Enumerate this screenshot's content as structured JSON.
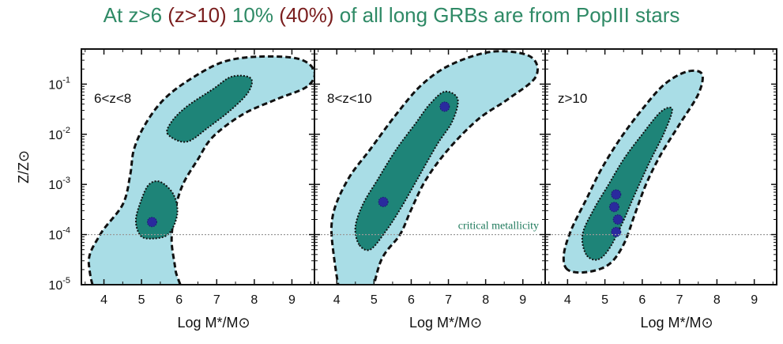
{
  "title_parts": [
    {
      "text": "At z>6 ",
      "color": "green"
    },
    {
      "text": "(z>10)",
      "color": "red"
    },
    {
      "text": " 10% ",
      "color": "green"
    },
    {
      "text": "(40%)",
      "color": "red"
    },
    {
      "text": " of all long GRBs are from PopIII stars",
      "color": "green"
    }
  ],
  "colors": {
    "title_green": "#2f8a66",
    "title_red": "#7a1e1e",
    "outer_contour": "#a9dde6",
    "inner_contour": "#1e8478",
    "peak": "#2a2a9e",
    "critical_line": "#9a9a9a",
    "annotation": "#1f7a5c"
  },
  "chart_data": [
    {
      "type": "contour",
      "panel_label": "6<z<8",
      "ylabel": "Z/Z⊙",
      "xlabel": "Log M*/M⊙",
      "xlim": [
        3.4,
        9.6
      ],
      "ylim_log10": [
        -5,
        -0.3
      ],
      "x_ticks": [
        4,
        5,
        6,
        7,
        8,
        9
      ],
      "y_ticks": [
        "10-5",
        "10-4",
        "10-3",
        "10-2",
        "10-1"
      ],
      "critical_metallicity": 0.0001,
      "outer_contour": [
        [
          4.1,
          -5
        ],
        [
          3.6,
          -4.6
        ],
        [
          3.9,
          -4.0
        ],
        [
          4.5,
          -3.4
        ],
        [
          4.7,
          -2.8
        ],
        [
          4.8,
          -2.3
        ],
        [
          5.1,
          -1.8
        ],
        [
          5.6,
          -1.3
        ],
        [
          6.3,
          -0.9
        ],
        [
          7.2,
          -0.55
        ],
        [
          8.2,
          -0.45
        ],
        [
          9.2,
          -0.5
        ],
        [
          9.6,
          -0.75
        ],
        [
          9.4,
          -1.05
        ],
        [
          8.6,
          -1.3
        ],
        [
          7.7,
          -1.6
        ],
        [
          6.9,
          -2.05
        ],
        [
          6.5,
          -2.5
        ],
        [
          6.1,
          -3.0
        ],
        [
          5.9,
          -3.5
        ],
        [
          5.8,
          -4.1
        ],
        [
          5.9,
          -4.7
        ],
        [
          6.0,
          -5
        ]
      ],
      "inner_contours": [
        [
          [
            5.0,
            -3.3
          ],
          [
            4.85,
            -3.7
          ],
          [
            4.95,
            -4.0
          ],
          [
            5.2,
            -4.08
          ],
          [
            5.7,
            -4.0
          ],
          [
            5.95,
            -3.6
          ],
          [
            5.85,
            -3.2
          ],
          [
            5.5,
            -2.95
          ],
          [
            5.2,
            -3.0
          ]
        ],
        [
          [
            5.7,
            -2.0
          ],
          [
            5.8,
            -1.75
          ],
          [
            6.2,
            -1.45
          ],
          [
            6.9,
            -1.1
          ],
          [
            7.4,
            -0.85
          ],
          [
            7.9,
            -0.88
          ],
          [
            7.85,
            -1.15
          ],
          [
            7.4,
            -1.5
          ],
          [
            6.8,
            -1.85
          ],
          [
            6.2,
            -2.15
          ]
        ]
      ],
      "peaks": [
        [
          5.28,
          -3.75
        ]
      ]
    },
    {
      "type": "contour",
      "panel_label": "8<z<10",
      "xlabel": "Log M*/M⊙",
      "xlim": [
        3.4,
        9.6
      ],
      "ylim_log10": [
        -5,
        -0.3
      ],
      "x_ticks": [
        4,
        5,
        6,
        7,
        8,
        9
      ],
      "critical_metallicity": 0.0001,
      "annotation": "critical metallicity",
      "outer_contour": [
        [
          4.2,
          -5
        ],
        [
          3.9,
          -4.3
        ],
        [
          3.9,
          -3.6
        ],
        [
          4.3,
          -2.9
        ],
        [
          4.9,
          -2.3
        ],
        [
          5.6,
          -1.6
        ],
        [
          6.3,
          -1.0
        ],
        [
          7.1,
          -0.6
        ],
        [
          8.2,
          -0.35
        ],
        [
          9.2,
          -0.45
        ],
        [
          9.35,
          -0.85
        ],
        [
          8.6,
          -1.3
        ],
        [
          7.8,
          -1.7
        ],
        [
          7.0,
          -2.3
        ],
        [
          6.4,
          -2.9
        ],
        [
          6.0,
          -3.5
        ],
        [
          5.7,
          -4.0
        ],
        [
          5.2,
          -4.5
        ],
        [
          4.8,
          -5
        ]
      ],
      "inner_contours": [
        [
          [
            4.6,
            -4.2
          ],
          [
            4.5,
            -3.85
          ],
          [
            4.7,
            -3.4
          ],
          [
            5.1,
            -2.9
          ],
          [
            5.6,
            -2.3
          ],
          [
            6.1,
            -1.8
          ],
          [
            6.5,
            -1.4
          ],
          [
            6.9,
            -1.15
          ],
          [
            7.25,
            -1.3
          ],
          [
            7.1,
            -1.75
          ],
          [
            6.7,
            -2.2
          ],
          [
            6.2,
            -2.85
          ],
          [
            5.7,
            -3.5
          ],
          [
            5.3,
            -3.95
          ],
          [
            4.9,
            -4.3
          ]
        ]
      ],
      "peaks": [
        [
          6.9,
          -1.45
        ],
        [
          5.25,
          -3.35
        ]
      ]
    },
    {
      "type": "contour",
      "panel_label": "z>10",
      "xlabel": "Log M*/M⊙",
      "xlim": [
        3.4,
        9.6
      ],
      "ylim_log10": [
        -5,
        -0.3
      ],
      "x_ticks": [
        4,
        5,
        6,
        7,
        8,
        9
      ],
      "critical_metallicity": 0.0001,
      "outer_contour": [
        [
          4.0,
          -4.7
        ],
        [
          3.9,
          -4.4
        ],
        [
          4.1,
          -3.9
        ],
        [
          4.5,
          -3.3
        ],
        [
          4.9,
          -2.7
        ],
        [
          5.4,
          -2.1
        ],
        [
          6.0,
          -1.5
        ],
        [
          6.6,
          -1.0
        ],
        [
          7.2,
          -0.75
        ],
        [
          7.6,
          -0.8
        ],
        [
          7.5,
          -1.2
        ],
        [
          7.0,
          -1.8
        ],
        [
          6.5,
          -2.4
        ],
        [
          6.1,
          -3.0
        ],
        [
          5.8,
          -3.6
        ],
        [
          5.5,
          -4.2
        ],
        [
          5.1,
          -4.6
        ],
        [
          4.5,
          -4.75
        ]
      ],
      "inner_contours": [
        [
          [
            4.5,
            -4.4
          ],
          [
            4.4,
            -4.0
          ],
          [
            4.7,
            -3.5
          ],
          [
            5.1,
            -3.0
          ],
          [
            5.5,
            -2.5
          ],
          [
            6.0,
            -2.0
          ],
          [
            6.5,
            -1.55
          ],
          [
            6.8,
            -1.5
          ],
          [
            6.6,
            -1.95
          ],
          [
            6.2,
            -2.55
          ],
          [
            5.8,
            -3.2
          ],
          [
            5.45,
            -3.8
          ],
          [
            5.1,
            -4.3
          ],
          [
            4.8,
            -4.5
          ]
        ]
      ],
      "peaks": [
        [
          5.3,
          -3.2
        ],
        [
          5.25,
          -3.45
        ],
        [
          5.35,
          -3.7
        ],
        [
          5.3,
          -3.95
        ]
      ]
    }
  ]
}
